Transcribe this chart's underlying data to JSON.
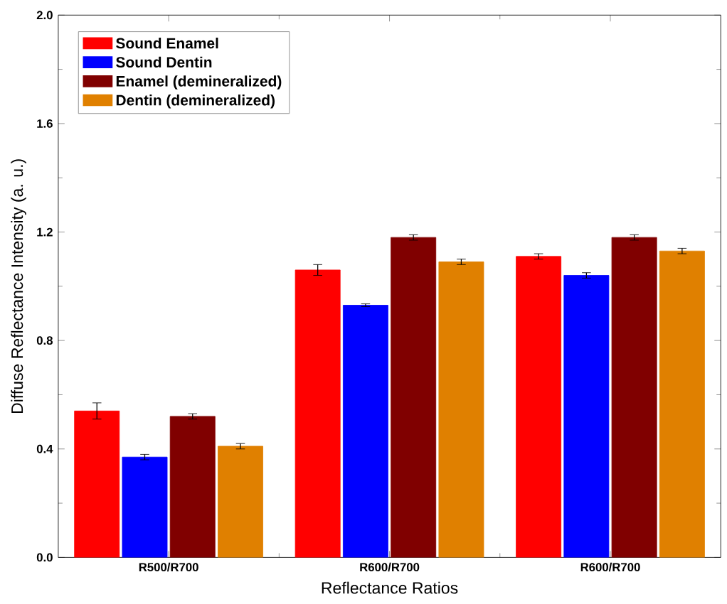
{
  "chart_data": {
    "type": "bar",
    "xlabel": "Reflectance Ratios",
    "ylabel": "Diffuse Reflectance Intensity (a. u.)",
    "categories": [
      "R500/R700",
      "R600/R700",
      "R600/R700"
    ],
    "series": [
      {
        "name": "Sound Enamel",
        "color": "#ff0000",
        "values": [
          0.54,
          1.06,
          1.11
        ],
        "errors": [
          0.03,
          0.02,
          0.01
        ]
      },
      {
        "name": "Sound Dentin",
        "color": "#0000ff",
        "values": [
          0.37,
          0.93,
          1.04
        ],
        "errors": [
          0.01,
          0.005,
          0.01
        ]
      },
      {
        "name": "Enamel (demineralized)",
        "color": "#800000",
        "values": [
          0.52,
          1.18,
          1.18
        ],
        "errors": [
          0.01,
          0.01,
          0.01
        ]
      },
      {
        "name": "Dentin (demineralized)",
        "color": "#e08000",
        "values": [
          0.41,
          1.09,
          1.13
        ],
        "errors": [
          0.01,
          0.01,
          0.01
        ]
      }
    ],
    "ylim": [
      0,
      2.0
    ],
    "yticks": [
      {
        "value": 0,
        "label": "0.0"
      },
      0.4,
      0.8,
      1.2,
      1.6,
      {
        "value": 2,
        "label": "2.0"
      }
    ],
    "legend": "top left",
    "grid": false
  }
}
